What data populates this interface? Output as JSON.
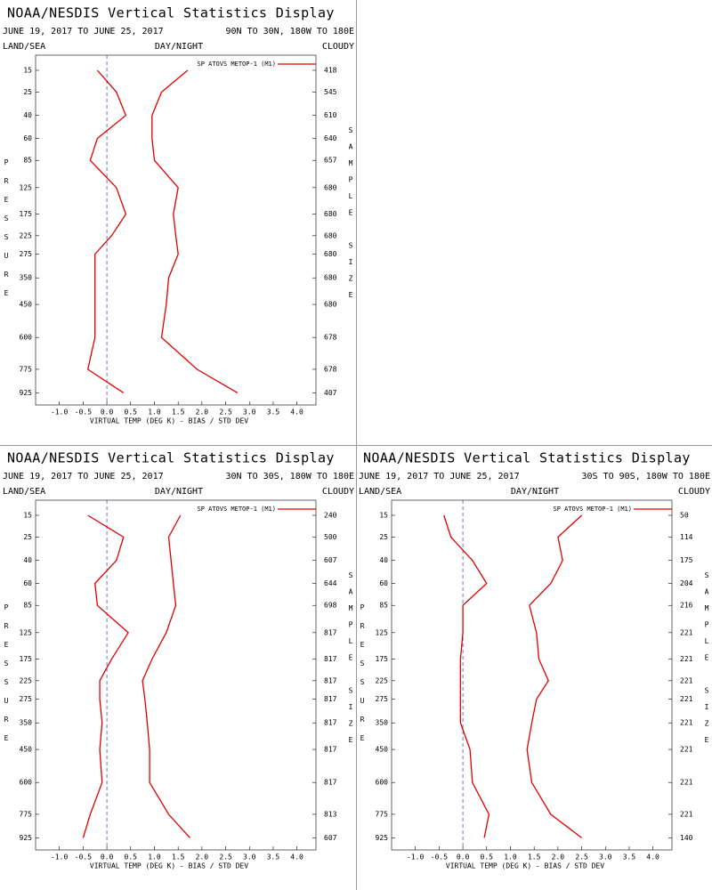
{
  "chart_data": [
    {
      "type": "line",
      "title": "NOAA/NESDIS Vertical Statistics Display",
      "subtitle": "JUNE 19, 2017 TO JUNE 25, 2017",
      "region": "90N TO 30N, 180W TO 180E",
      "land_sea": "LAND/SEA",
      "day_night": "DAY/NIGHT",
      "cloudy": "CLOUDY",
      "y_label": "PRESSURE",
      "y2_label": "SAMPLE SIZE",
      "x_label": "VIRTUAL TEMP (DEG K) - BIAS / STD DEV",
      "y": [
        15,
        25,
        40,
        60,
        85,
        125,
        175,
        225,
        275,
        350,
        450,
        600,
        775,
        925
      ],
      "ylim": [
        10,
        1010
      ],
      "yticks": [
        15,
        25,
        40,
        60,
        85,
        125,
        175,
        225,
        275,
        350,
        450,
        600,
        775,
        925
      ],
      "sample_sizes": [
        418,
        545,
        610,
        640,
        657,
        680,
        680,
        680,
        680,
        680,
        680,
        678,
        678,
        407
      ],
      "xlim": [
        -1.5,
        4.4
      ],
      "xticks": [
        {
          "value": -1,
          "label": "-1.0"
        },
        -0.5,
        {
          "value": 0,
          "label": "0.0"
        },
        0.5,
        {
          "value": 1,
          "label": "1.0"
        },
        1.5,
        {
          "value": 2,
          "label": "2.0"
        },
        2.5,
        {
          "value": 3,
          "label": "3.0"
        },
        3.5,
        {
          "value": 4,
          "label": "4.0"
        }
      ],
      "series": [
        {
          "name": "SP ATOVS METOP-1 (M1)",
          "color": "#e00000",
          "bias": [
            -0.2,
            0.2,
            0.4,
            -0.2,
            -0.35,
            0.2,
            0.4,
            0.1,
            -0.25,
            -0.25,
            -0.25,
            -0.25,
            -0.4,
            0.35
          ],
          "std_dev": [
            1.7,
            1.15,
            0.95,
            0.95,
            1.0,
            1.5,
            1.4,
            1.45,
            1.5,
            1.3,
            1.25,
            1.15,
            1.9,
            2.75
          ]
        }
      ]
    },
    {
      "type": "line",
      "title": "NOAA/NESDIS Vertical Statistics Display",
      "subtitle": "JUNE 19, 2017 TO JUNE 25, 2017",
      "region": "30N TO 30S, 180W TO 180E",
      "land_sea": "LAND/SEA",
      "day_night": "DAY/NIGHT",
      "cloudy": "CLOUDY",
      "y_label": "PRESSURE",
      "y2_label": "SAMPLE SIZE",
      "x_label": "VIRTUAL TEMP (DEG K) - BIAS / STD DEV",
      "y": [
        15,
        25,
        40,
        60,
        85,
        125,
        175,
        225,
        275,
        350,
        450,
        600,
        775,
        925
      ],
      "ylim": [
        10,
        1010
      ],
      "yticks": [
        15,
        25,
        40,
        60,
        85,
        125,
        175,
        225,
        275,
        350,
        450,
        600,
        775,
        925
      ],
      "sample_sizes": [
        240,
        500,
        607,
        644,
        698,
        817,
        817,
        817,
        817,
        817,
        817,
        817,
        813,
        607
      ],
      "xlim": [
        -1.5,
        4.4
      ],
      "xticks": [
        {
          "value": -1,
          "label": "-1.0"
        },
        -0.5,
        {
          "value": 0,
          "label": "0.0"
        },
        0.5,
        {
          "value": 1,
          "label": "1.0"
        },
        1.5,
        {
          "value": 2,
          "label": "2.0"
        },
        2.5,
        {
          "value": 3,
          "label": "3.0"
        },
        3.5,
        {
          "value": 4,
          "label": "4.0"
        }
      ],
      "series": [
        {
          "name": "SP ATOVS METOP-1 (M1)",
          "color": "#e00000",
          "bias": [
            -0.4,
            0.35,
            0.2,
            -0.25,
            -0.2,
            0.45,
            0.1,
            -0.15,
            -0.15,
            -0.1,
            -0.15,
            -0.1,
            -0.35,
            -0.5
          ],
          "std_dev": [
            1.55,
            1.3,
            1.35,
            1.4,
            1.45,
            1.25,
            0.95,
            0.75,
            0.8,
            0.85,
            0.9,
            0.9,
            1.3,
            1.75
          ]
        }
      ]
    },
    {
      "type": "line",
      "title": "NOAA/NESDIS Vertical Statistics Display",
      "subtitle": "JUNE 19, 2017 TO JUNE 25, 2017",
      "region": "30S TO 90S, 180W TO 180E",
      "land_sea": "LAND/SEA",
      "day_night": "DAY/NIGHT",
      "cloudy": "CLOUDY",
      "y_label": "PRESSURE",
      "y2_label": "SAMPLE SIZE",
      "x_label": "VIRTUAL TEMP (DEG K) - BIAS / STD DEV",
      "y": [
        15,
        25,
        40,
        60,
        85,
        125,
        175,
        225,
        275,
        350,
        450,
        600,
        775,
        925
      ],
      "ylim": [
        10,
        1010
      ],
      "yticks": [
        15,
        25,
        40,
        60,
        85,
        125,
        175,
        225,
        275,
        350,
        450,
        600,
        775,
        925
      ],
      "sample_sizes": [
        50,
        114,
        175,
        204,
        216,
        221,
        221,
        221,
        221,
        221,
        221,
        221,
        221,
        140
      ],
      "xlim": [
        -1.5,
        4.4
      ],
      "xticks": [
        {
          "value": -1,
          "label": "-1.0"
        },
        -0.5,
        {
          "value": 0,
          "label": "0.0"
        },
        0.5,
        {
          "value": 1,
          "label": "1.0"
        },
        1.5,
        {
          "value": 2,
          "label": "2.0"
        },
        2.5,
        {
          "value": 3,
          "label": "3.0"
        },
        3.5,
        {
          "value": 4,
          "label": "4.0"
        }
      ],
      "series": [
        {
          "name": "SP ATOVS METOP-1 (M1)",
          "color": "#e00000",
          "bias": [
            -0.4,
            -0.25,
            0.2,
            0.5,
            0.0,
            0.0,
            -0.05,
            -0.05,
            -0.05,
            -0.05,
            0.15,
            0.2,
            0.55,
            0.45
          ],
          "std_dev": [
            2.5,
            2.0,
            2.1,
            1.85,
            1.4,
            1.55,
            1.6,
            1.8,
            1.55,
            1.45,
            1.35,
            1.45,
            1.85,
            2.5
          ]
        }
      ]
    }
  ]
}
